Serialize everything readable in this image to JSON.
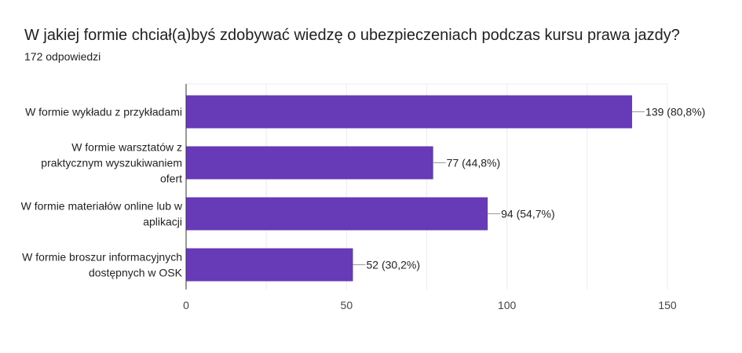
{
  "title": "W jakiej formie chciał(a)byś zdobywać wiedzę o ubezpieczeniach podczas kursu prawa jazdy?",
  "subtitle": "172 odpowiedzi",
  "bar_color": "#673ab7",
  "chart_data": {
    "type": "bar",
    "orientation": "horizontal",
    "categories": [
      [
        "W formie wykładu z przykładami"
      ],
      [
        "W formie warsztatów z",
        "praktycznym wyszukiwaniem",
        "ofert"
      ],
      [
        "W formie materiałów online lub w",
        "aplikacji"
      ],
      [
        "W formie broszur informacyjnych",
        "dostępnych w OSK"
      ]
    ],
    "values": [
      139,
      77,
      94,
      52
    ],
    "labels": [
      "139 (80,8%)",
      "77 (44,8%)",
      "94 (54,7%)",
      "52 (30,2%)"
    ],
    "xlim": [
      0,
      150
    ],
    "xticks": [
      0,
      50,
      100,
      150
    ],
    "grid": true
  }
}
